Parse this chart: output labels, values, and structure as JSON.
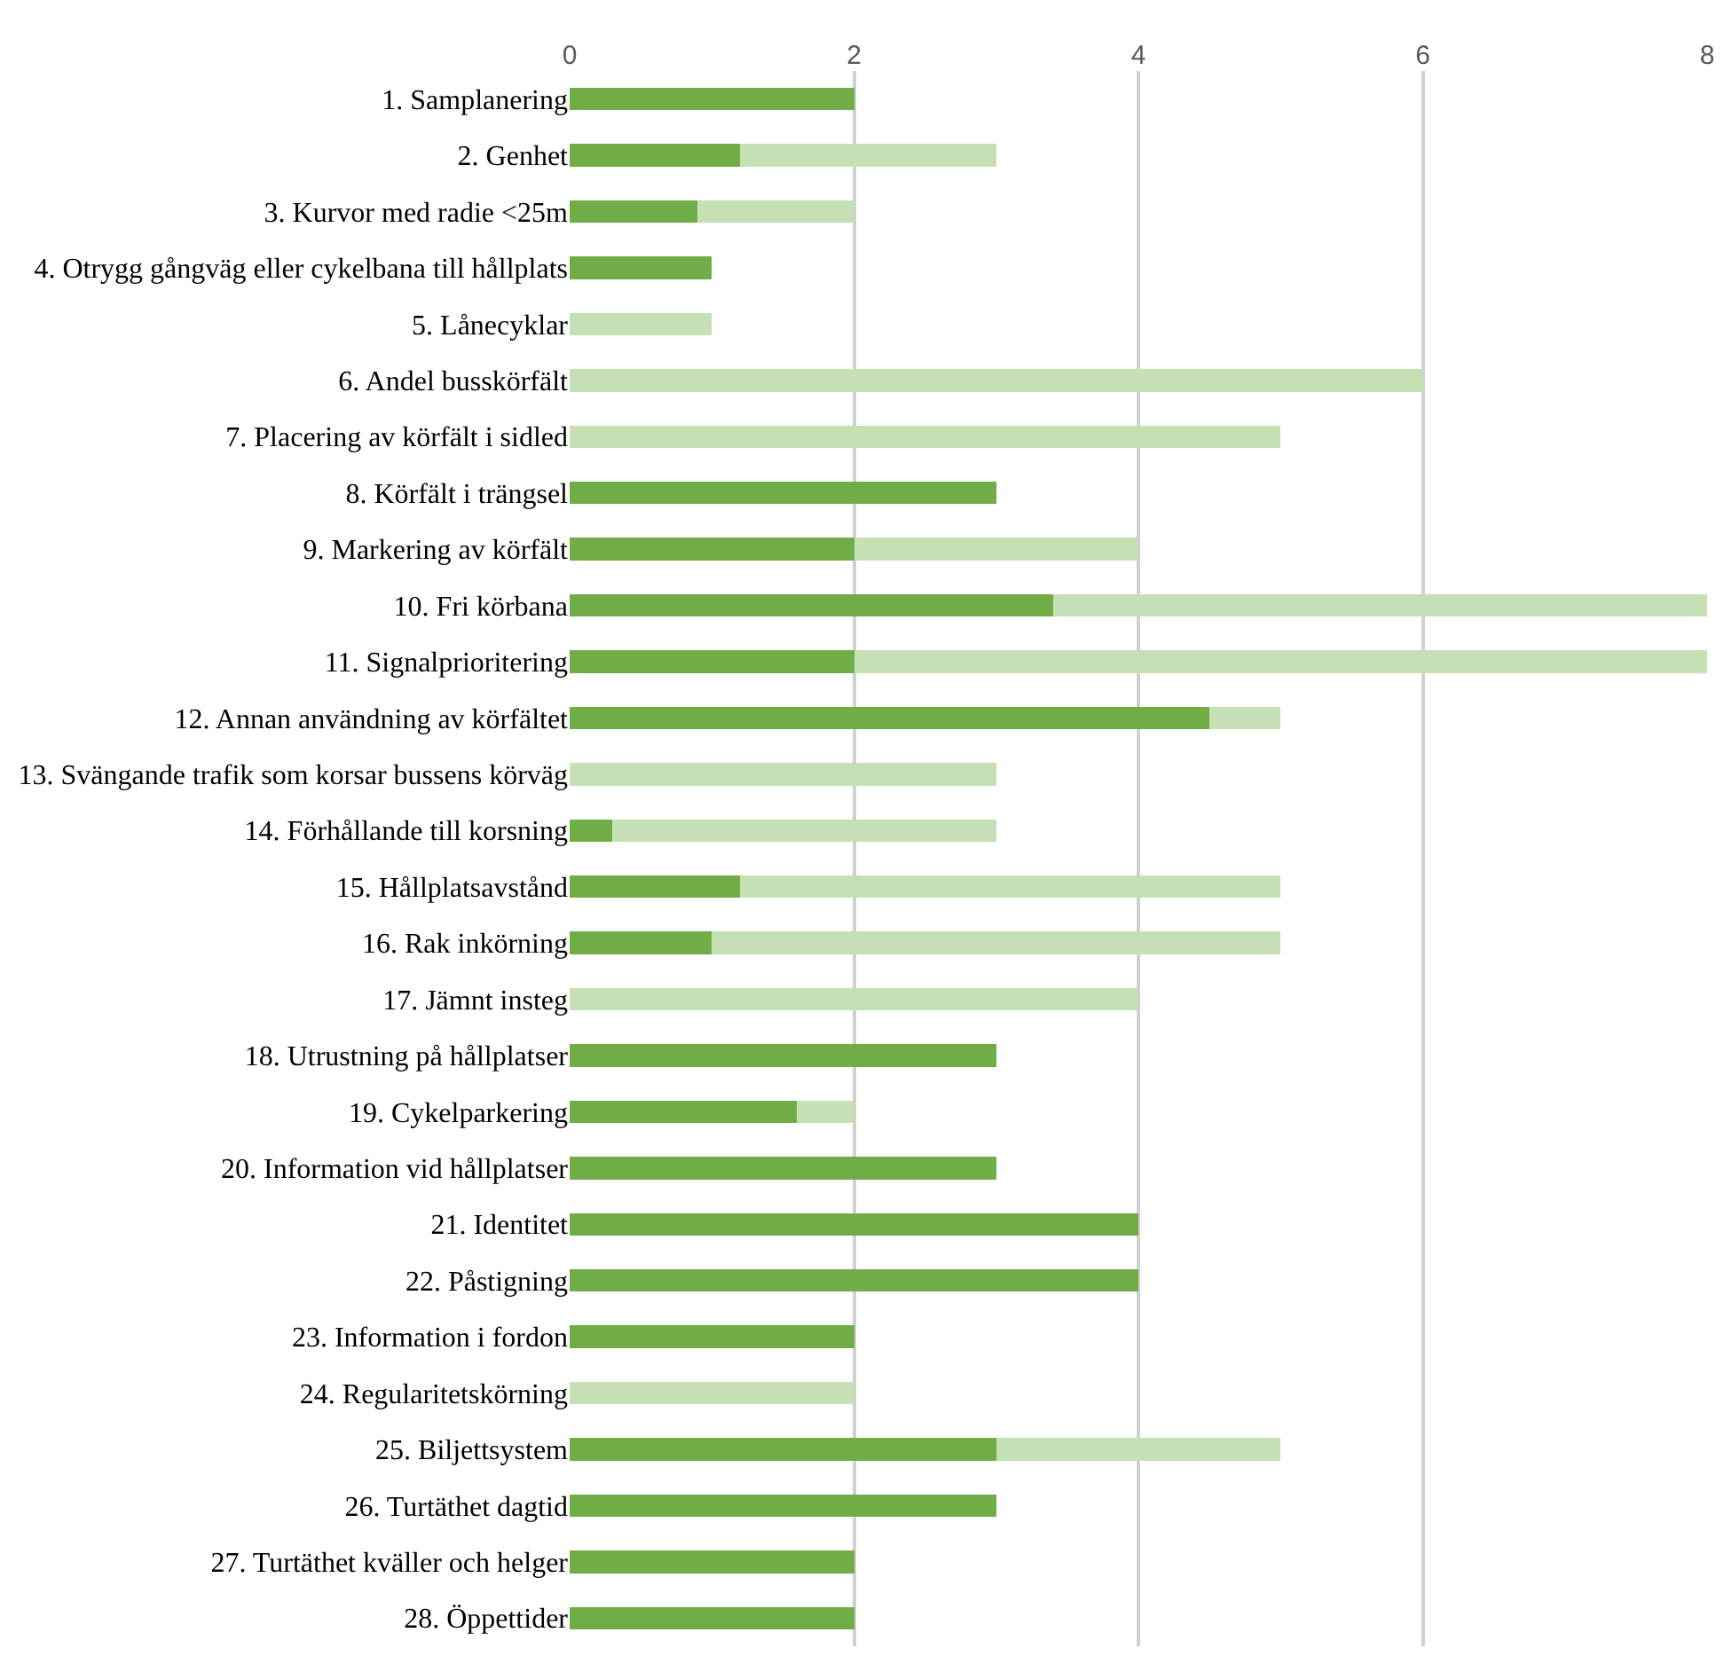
{
  "chart_data": {
    "type": "bar",
    "orientation": "horizontal",
    "stacked": true,
    "categories": [
      "1. Samplanering",
      "2. Genhet",
      "3. Kurvor med radie <25m",
      "4. Otrygg gångväg eller cykelbana till hållplats",
      "5. Lånecyklar",
      "6. Andel busskörfält",
      "7. Placering av körfält i sidled",
      "8. Körfält i trängsel",
      "9. Markering av körfält",
      "10. Fri körbana",
      "11. Signalprioritering",
      "12. Annan användning av körfältet",
      "13. Svängande trafik som korsar bussens körväg",
      "14. Förhållande till korsning",
      "15. Hållplatsavstånd",
      "16. Rak inkörning",
      "17. Jämnt insteg",
      "18. Utrustning på hållplatser",
      "19. Cykelparkering",
      "20. Information vid hållplatser",
      "21. Identitet",
      "22. Påstigning",
      "23. Information i fordon",
      "24. Regularitetskörning",
      "25. Biljettsystem",
      "26. Turtäthet dagtid",
      "27. Turtäthet kväller och helger",
      "28. Öppettider"
    ],
    "series": [
      {
        "color": "#70ad47",
        "values": [
          2,
          1.2,
          0.9,
          1,
          null,
          null,
          null,
          3,
          2,
          3.4,
          2,
          4.5,
          null,
          0.3,
          1.2,
          1,
          null,
          3,
          1.6,
          3,
          4,
          4,
          2,
          null,
          3,
          3,
          2,
          2
        ]
      },
      {
        "color": "#c5e0b4",
        "values": [
          null,
          1.8,
          1.1,
          null,
          1,
          6,
          5,
          null,
          2,
          4.6,
          6,
          0.5,
          3,
          2.7,
          3.8,
          4,
          4,
          null,
          0.4,
          null,
          null,
          null,
          null,
          2,
          2,
          null,
          null,
          null
        ]
      }
    ],
    "xlim": [
      0,
      8
    ],
    "xticks": [
      0,
      2,
      4,
      6,
      8
    ],
    "grid": "x"
  }
}
